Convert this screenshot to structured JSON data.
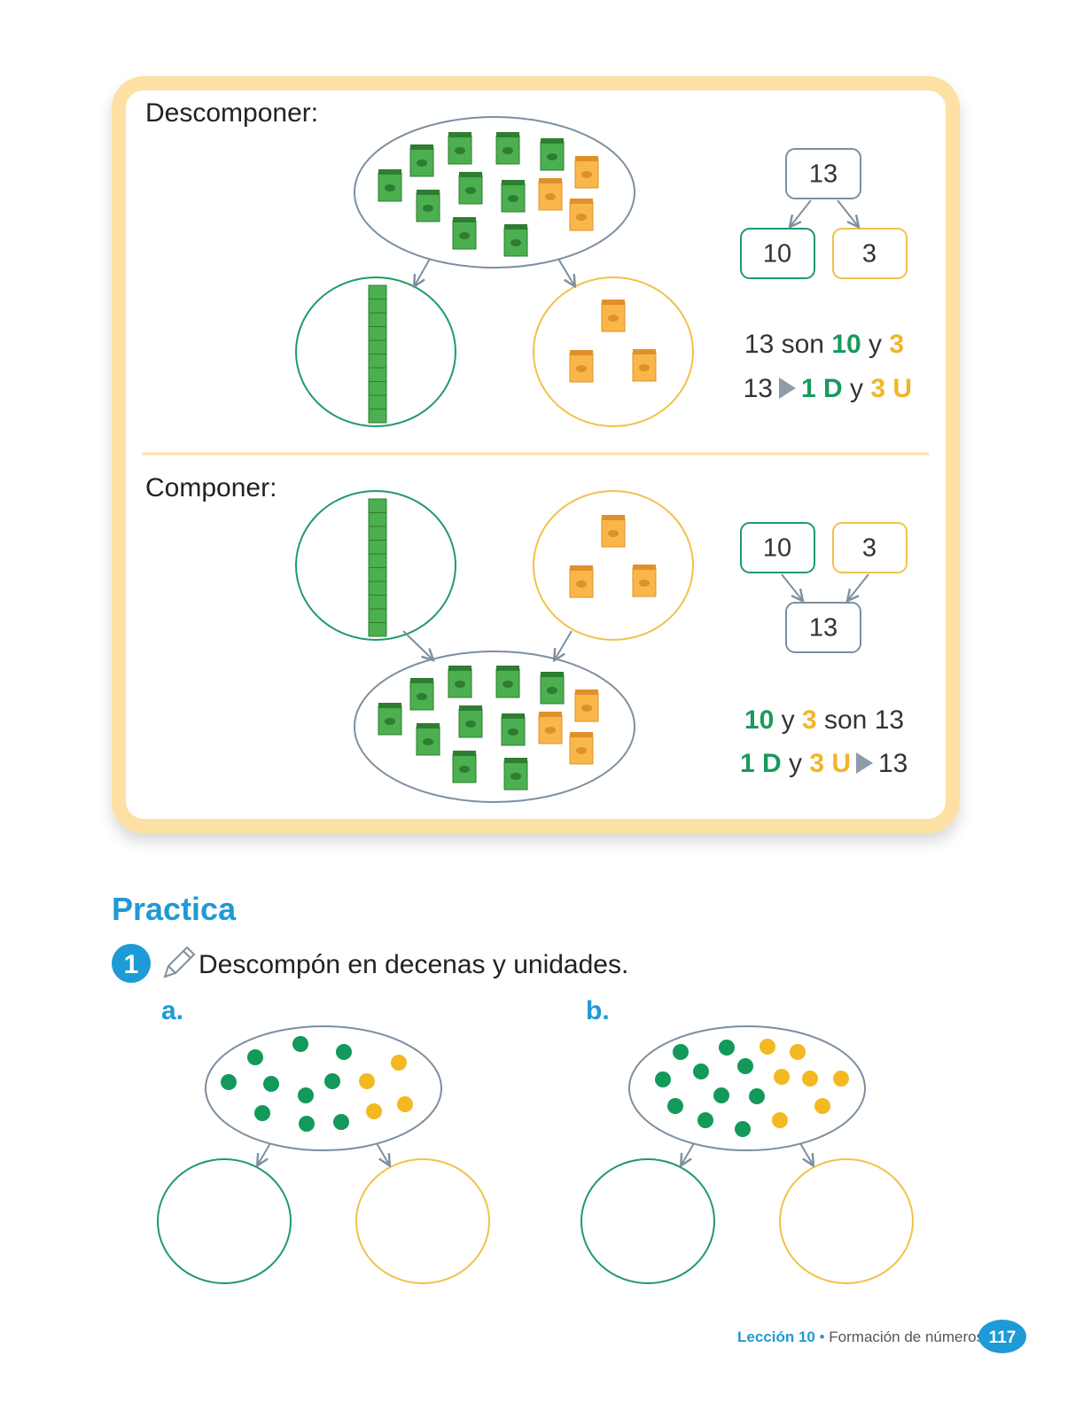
{
  "decompose": {
    "title": "Descomponer:",
    "boxes": {
      "total": "13",
      "tens": "10",
      "units": "3"
    },
    "sentence1": [
      "13 son",
      "10",
      "y",
      "3"
    ],
    "sentence2": [
      "13",
      "1 D",
      "y",
      "3 U"
    ]
  },
  "compose": {
    "title": "Componer:",
    "boxes": {
      "tens": "10",
      "units": "3",
      "total": "13"
    },
    "sentence1": [
      "10",
      "y",
      "3",
      "son 13"
    ],
    "sentence2": [
      "1 D",
      "y",
      "3 U",
      "13"
    ]
  },
  "practice": {
    "heading": "Practica",
    "exercise": {
      "number": "1",
      "instruction": "Descompón en decenas y unidades.",
      "items": [
        "a.",
        "b."
      ]
    }
  },
  "footer": {
    "lesson": "Lección 10",
    "separator": "•",
    "topic": "Formación de números",
    "page": "117"
  }
}
